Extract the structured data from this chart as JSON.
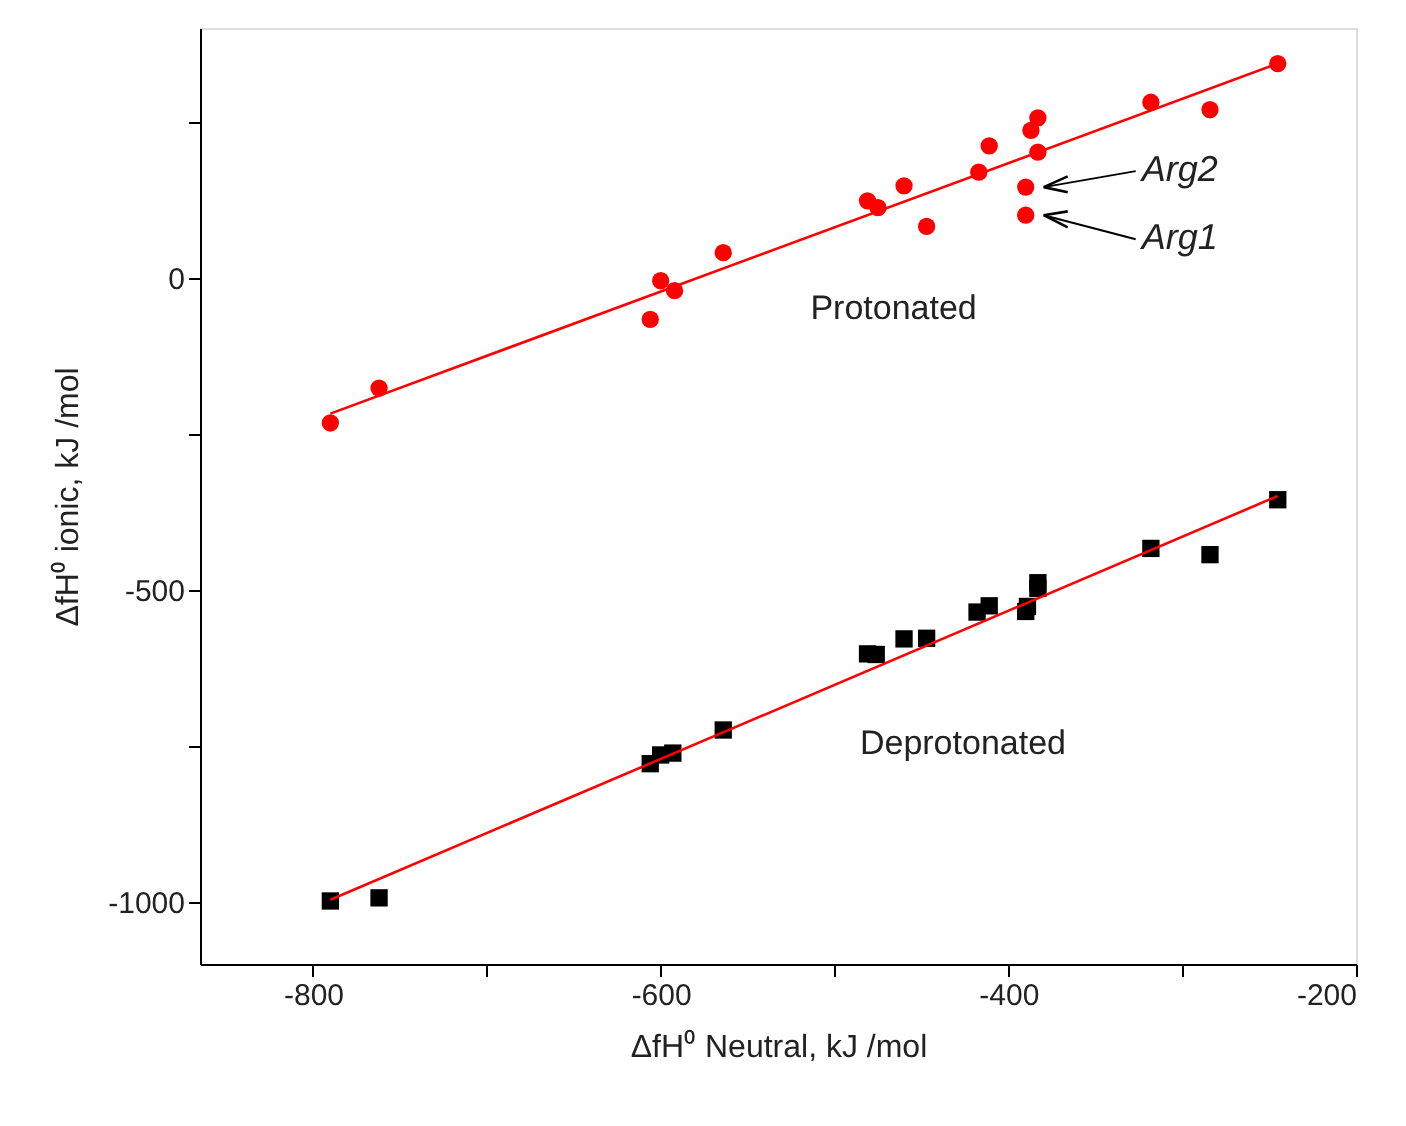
{
  "chart_data": {
    "type": "scatter",
    "xlabel": "ΔfH⁰ Neutral, kJ /mol",
    "ylabel": "ΔfH⁰ ionic, kJ /mol",
    "xlim": [
      -865,
      -200
    ],
    "ylim": [
      -1100,
      400
    ],
    "xticks": [
      -800,
      {
        "value": -700,
        "label": null
      },
      -600,
      {
        "value": -500,
        "label": null
      },
      -400,
      {
        "value": -300,
        "label": null
      },
      -200
    ],
    "yticks": [
      -1000,
      {
        "value": -750,
        "label": null
      },
      -500,
      {
        "value": -250,
        "label": null
      },
      0,
      {
        "value": 250,
        "label": null
      }
    ],
    "grid": false,
    "series": [
      {
        "marker": "circle",
        "color": "#ff0000",
        "x": [
          -790,
          -762,
          -606,
          -600,
          -592,
          -564,
          -481,
          -475,
          -460,
          -447,
          -417,
          -411,
          -390,
          -390,
          -387,
          -383,
          -383,
          -318,
          -284,
          -245
        ],
        "values": [
          -233,
          -177,
          -67,
          -5,
          -21,
          40,
          123,
          112,
          147,
          82,
          169,
          211,
          145,
          100,
          236,
          256,
          201,
          281,
          269,
          343
        ]
      },
      {
        "marker": "square",
        "color": "#000000",
        "x": [
          -790,
          -762,
          -606,
          -600,
          -593,
          -564,
          -481,
          -476,
          -460,
          -447,
          -418,
          -411,
          -390,
          -389,
          -383,
          -383,
          -318,
          -284,
          -245
        ],
        "values": [
          -999,
          -994,
          -779,
          -765,
          -762,
          -725,
          -603,
          -604,
          -579,
          -578,
          -536,
          -526,
          -535,
          -527,
          -498,
          -489,
          -434,
          -444,
          -356
        ]
      },
      {
        "type": "line",
        "marker": "none",
        "line_style": "solid",
        "color": "#ff0000",
        "x": [
          -790,
          -245
        ],
        "values": [
          -218,
          343
        ]
      },
      {
        "type": "line",
        "marker": "none",
        "line_style": "solid",
        "color": "#ff0000",
        "x": [
          -790,
          -245
        ],
        "values": [
          -997,
          -350
        ]
      }
    ],
    "annotations": [
      "Protonated",
      "Deprotonated",
      {
        "text": "Arg2",
        "x": -390,
        "y": 145
      },
      {
        "text": "Arg1",
        "x": -390,
        "y": 100
      }
    ]
  }
}
